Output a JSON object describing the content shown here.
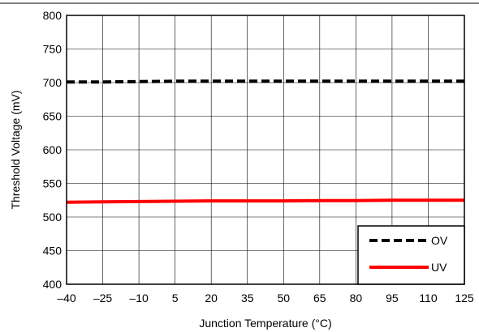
{
  "chart_data": {
    "type": "line",
    "xlabel": "Junction Temperature (°C)",
    "ylabel": "Threshold Voltage (mV)",
    "xlim": [
      -40,
      125
    ],
    "ylim": [
      400,
      800
    ],
    "x_ticks": [
      -40,
      -25,
      -10,
      5,
      20,
      35,
      50,
      65,
      80,
      95,
      110,
      125
    ],
    "x_tick_labels": [
      "–40",
      "–25",
      "–10",
      "5",
      "20",
      "35",
      "50",
      "65",
      "80",
      "95",
      "110",
      "125"
    ],
    "y_ticks": [
      400,
      450,
      500,
      550,
      600,
      650,
      700,
      750,
      800
    ],
    "y_tick_labels": [
      "400",
      "450",
      "500",
      "550",
      "600",
      "650",
      "700",
      "750",
      "800"
    ],
    "grid": true,
    "legend_position": "bottom-right",
    "series": [
      {
        "name": "OV",
        "color": "#000000",
        "style": "dashed",
        "x": [
          -40,
          -25,
          -10,
          5,
          20,
          35,
          50,
          65,
          80,
          95,
          110,
          125
        ],
        "y": [
          701,
          701,
          701.5,
          702,
          702,
          702,
          702,
          702,
          702,
          702,
          702,
          702
        ]
      },
      {
        "name": "UV",
        "color": "#ff0000",
        "style": "solid",
        "x": [
          -40,
          -25,
          -10,
          5,
          20,
          35,
          50,
          65,
          80,
          95,
          110,
          125
        ],
        "y": [
          522,
          522.5,
          523,
          523.5,
          524,
          524,
          524,
          524.5,
          524.5,
          525,
          525,
          525
        ]
      }
    ]
  }
}
